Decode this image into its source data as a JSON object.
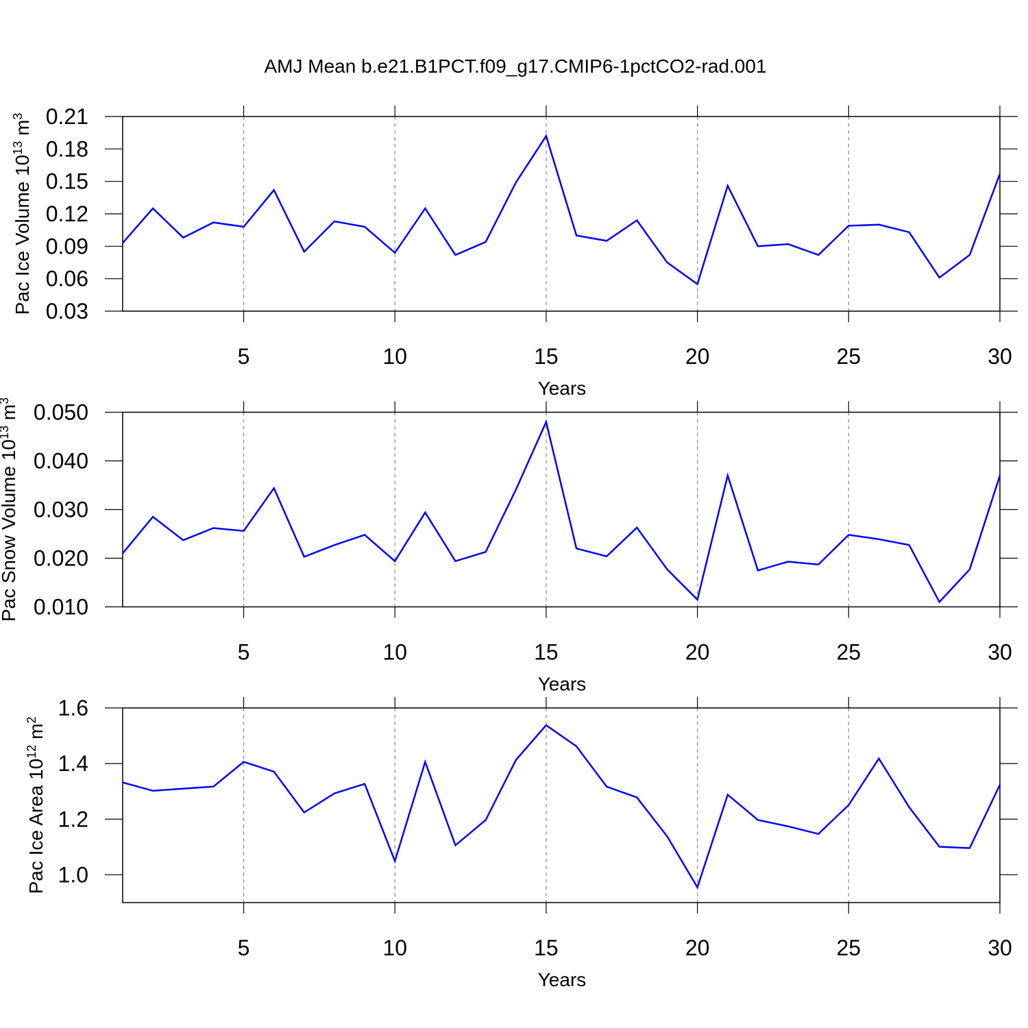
{
  "chart_data": [
    {
      "type": "line",
      "title": "AMJ Mean b.e21.B1PCT.f09_g17.CMIP6-1pctCO2-rad.001",
      "ylabel": [
        "Pac Ice Volume 10",
        "13",
        " m",
        "3"
      ],
      "xlabel": "Years",
      "x": [
        1,
        2,
        3,
        4,
        5,
        6,
        7,
        8,
        9,
        10,
        11,
        12,
        13,
        14,
        15,
        16,
        17,
        18,
        19,
        20,
        21,
        22,
        23,
        24,
        25,
        26,
        27,
        28,
        29,
        30
      ],
      "values": [
        0.093,
        0.125,
        0.098,
        0.112,
        0.108,
        0.142,
        0.085,
        0.113,
        0.108,
        0.084,
        0.125,
        0.082,
        0.094,
        0.149,
        0.192,
        0.1,
        0.095,
        0.114,
        0.075,
        0.055,
        0.146,
        0.09,
        0.092,
        0.082,
        0.109,
        0.11,
        0.103,
        0.061,
        0.082,
        0.157
      ],
      "color": "#0000ff",
      "xlim": [
        1,
        30
      ],
      "xticks": [
        5,
        10,
        15,
        20,
        25,
        30
      ],
      "ylim": [
        0.03,
        0.21
      ],
      "yticks": [
        0.03,
        0.06,
        0.09,
        0.12,
        0.15,
        0.18,
        0.21
      ],
      "grid": true
    },
    {
      "type": "line",
      "ylabel": [
        "Pac Snow Volume 10",
        "13",
        " m",
        "3"
      ],
      "xlabel": "Years",
      "x": [
        1,
        2,
        3,
        4,
        5,
        6,
        7,
        8,
        9,
        10,
        11,
        12,
        13,
        14,
        15,
        16,
        17,
        18,
        19,
        20,
        21,
        22,
        23,
        24,
        25,
        26,
        27,
        28,
        29,
        30
      ],
      "values": [
        0.021,
        0.0285,
        0.0237,
        0.0262,
        0.0256,
        0.0344,
        0.0203,
        0.0227,
        0.0248,
        0.0194,
        0.0294,
        0.0194,
        0.0213,
        0.0341,
        0.048,
        0.022,
        0.0204,
        0.0263,
        0.0177,
        0.0115,
        0.037,
        0.0175,
        0.0193,
        0.0187,
        0.0248,
        0.0239,
        0.0227,
        0.011,
        0.0177,
        0.037
      ],
      "color": "#0000ff",
      "xlim": [
        1,
        30
      ],
      "xticks": [
        5,
        10,
        15,
        20,
        25,
        30
      ],
      "ylim": [
        0.01,
        0.05
      ],
      "yticks": [
        {
          "value": 0.01,
          "label": "0.010"
        },
        {
          "value": 0.02,
          "label": "0.020"
        },
        {
          "value": 0.03,
          "label": "0.030"
        },
        {
          "value": 0.04,
          "label": "0.040"
        },
        {
          "value": 0.05,
          "label": "0.050"
        }
      ],
      "grid": true
    },
    {
      "type": "line",
      "ylabel": [
        "Pac Ice Area 10",
        "12",
        " m",
        "2"
      ],
      "xlabel": "Years",
      "x": [
        1,
        2,
        3,
        4,
        5,
        6,
        7,
        8,
        9,
        10,
        11,
        12,
        13,
        14,
        15,
        16,
        17,
        18,
        19,
        20,
        21,
        22,
        23,
        24,
        25,
        26,
        27,
        28,
        29,
        30
      ],
      "values": [
        1.332,
        1.302,
        1.31,
        1.317,
        1.406,
        1.371,
        1.224,
        1.293,
        1.327,
        1.049,
        1.406,
        1.106,
        1.197,
        1.413,
        1.538,
        1.462,
        1.317,
        1.278,
        1.138,
        0.955,
        1.288,
        1.197,
        1.174,
        1.147,
        1.251,
        1.418,
        1.243,
        1.101,
        1.096,
        1.324
      ],
      "color": "#0000ff",
      "xlim": [
        1,
        30
      ],
      "xticks": [
        5,
        10,
        15,
        20,
        25,
        30
      ],
      "ylim": [
        0.9,
        1.6
      ],
      "yticks": [
        {
          "value": 1.0,
          "label": "1.0"
        },
        1.2,
        1.4,
        1.6
      ],
      "grid": true
    }
  ]
}
